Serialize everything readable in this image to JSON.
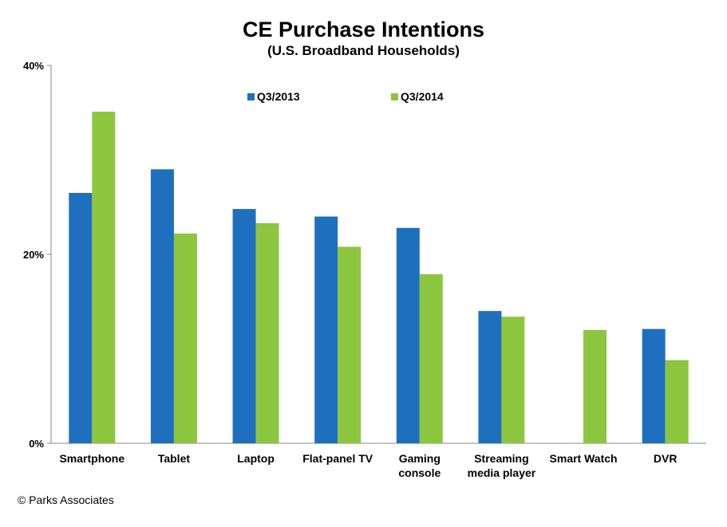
{
  "title": "CE Purchase Intentions",
  "subtitle": "(U.S. Broadband Households)",
  "source": "© Parks Associates",
  "chart_data": {
    "type": "bar",
    "title": "CE Purchase Intentions",
    "subtitle": "(U.S. Broadband Households)",
    "categories": [
      [
        "Smartphone"
      ],
      [
        "Tablet"
      ],
      [
        "Laptop"
      ],
      [
        "Flat-panel TV"
      ],
      [
        "Gaming",
        "console"
      ],
      [
        "Streaming",
        "media player"
      ],
      [
        "Smart Watch"
      ],
      [
        "DVR"
      ]
    ],
    "series": [
      {
        "name": "Q3/2013",
        "color": "#1F6FBF",
        "values": [
          26.5,
          29,
          24.8,
          24,
          22.8,
          14,
          null,
          12.1
        ]
      },
      {
        "name": "Q3/2014",
        "color": "#8CC63F",
        "values": [
          35.1,
          22.2,
          23.3,
          20.8,
          17.9,
          13.4,
          12,
          8.8
        ]
      }
    ],
    "yticks": [
      "0%",
      "20%",
      "40%"
    ],
    "ylim": [
      0,
      40
    ],
    "legend_position": "top",
    "grid": false
  }
}
